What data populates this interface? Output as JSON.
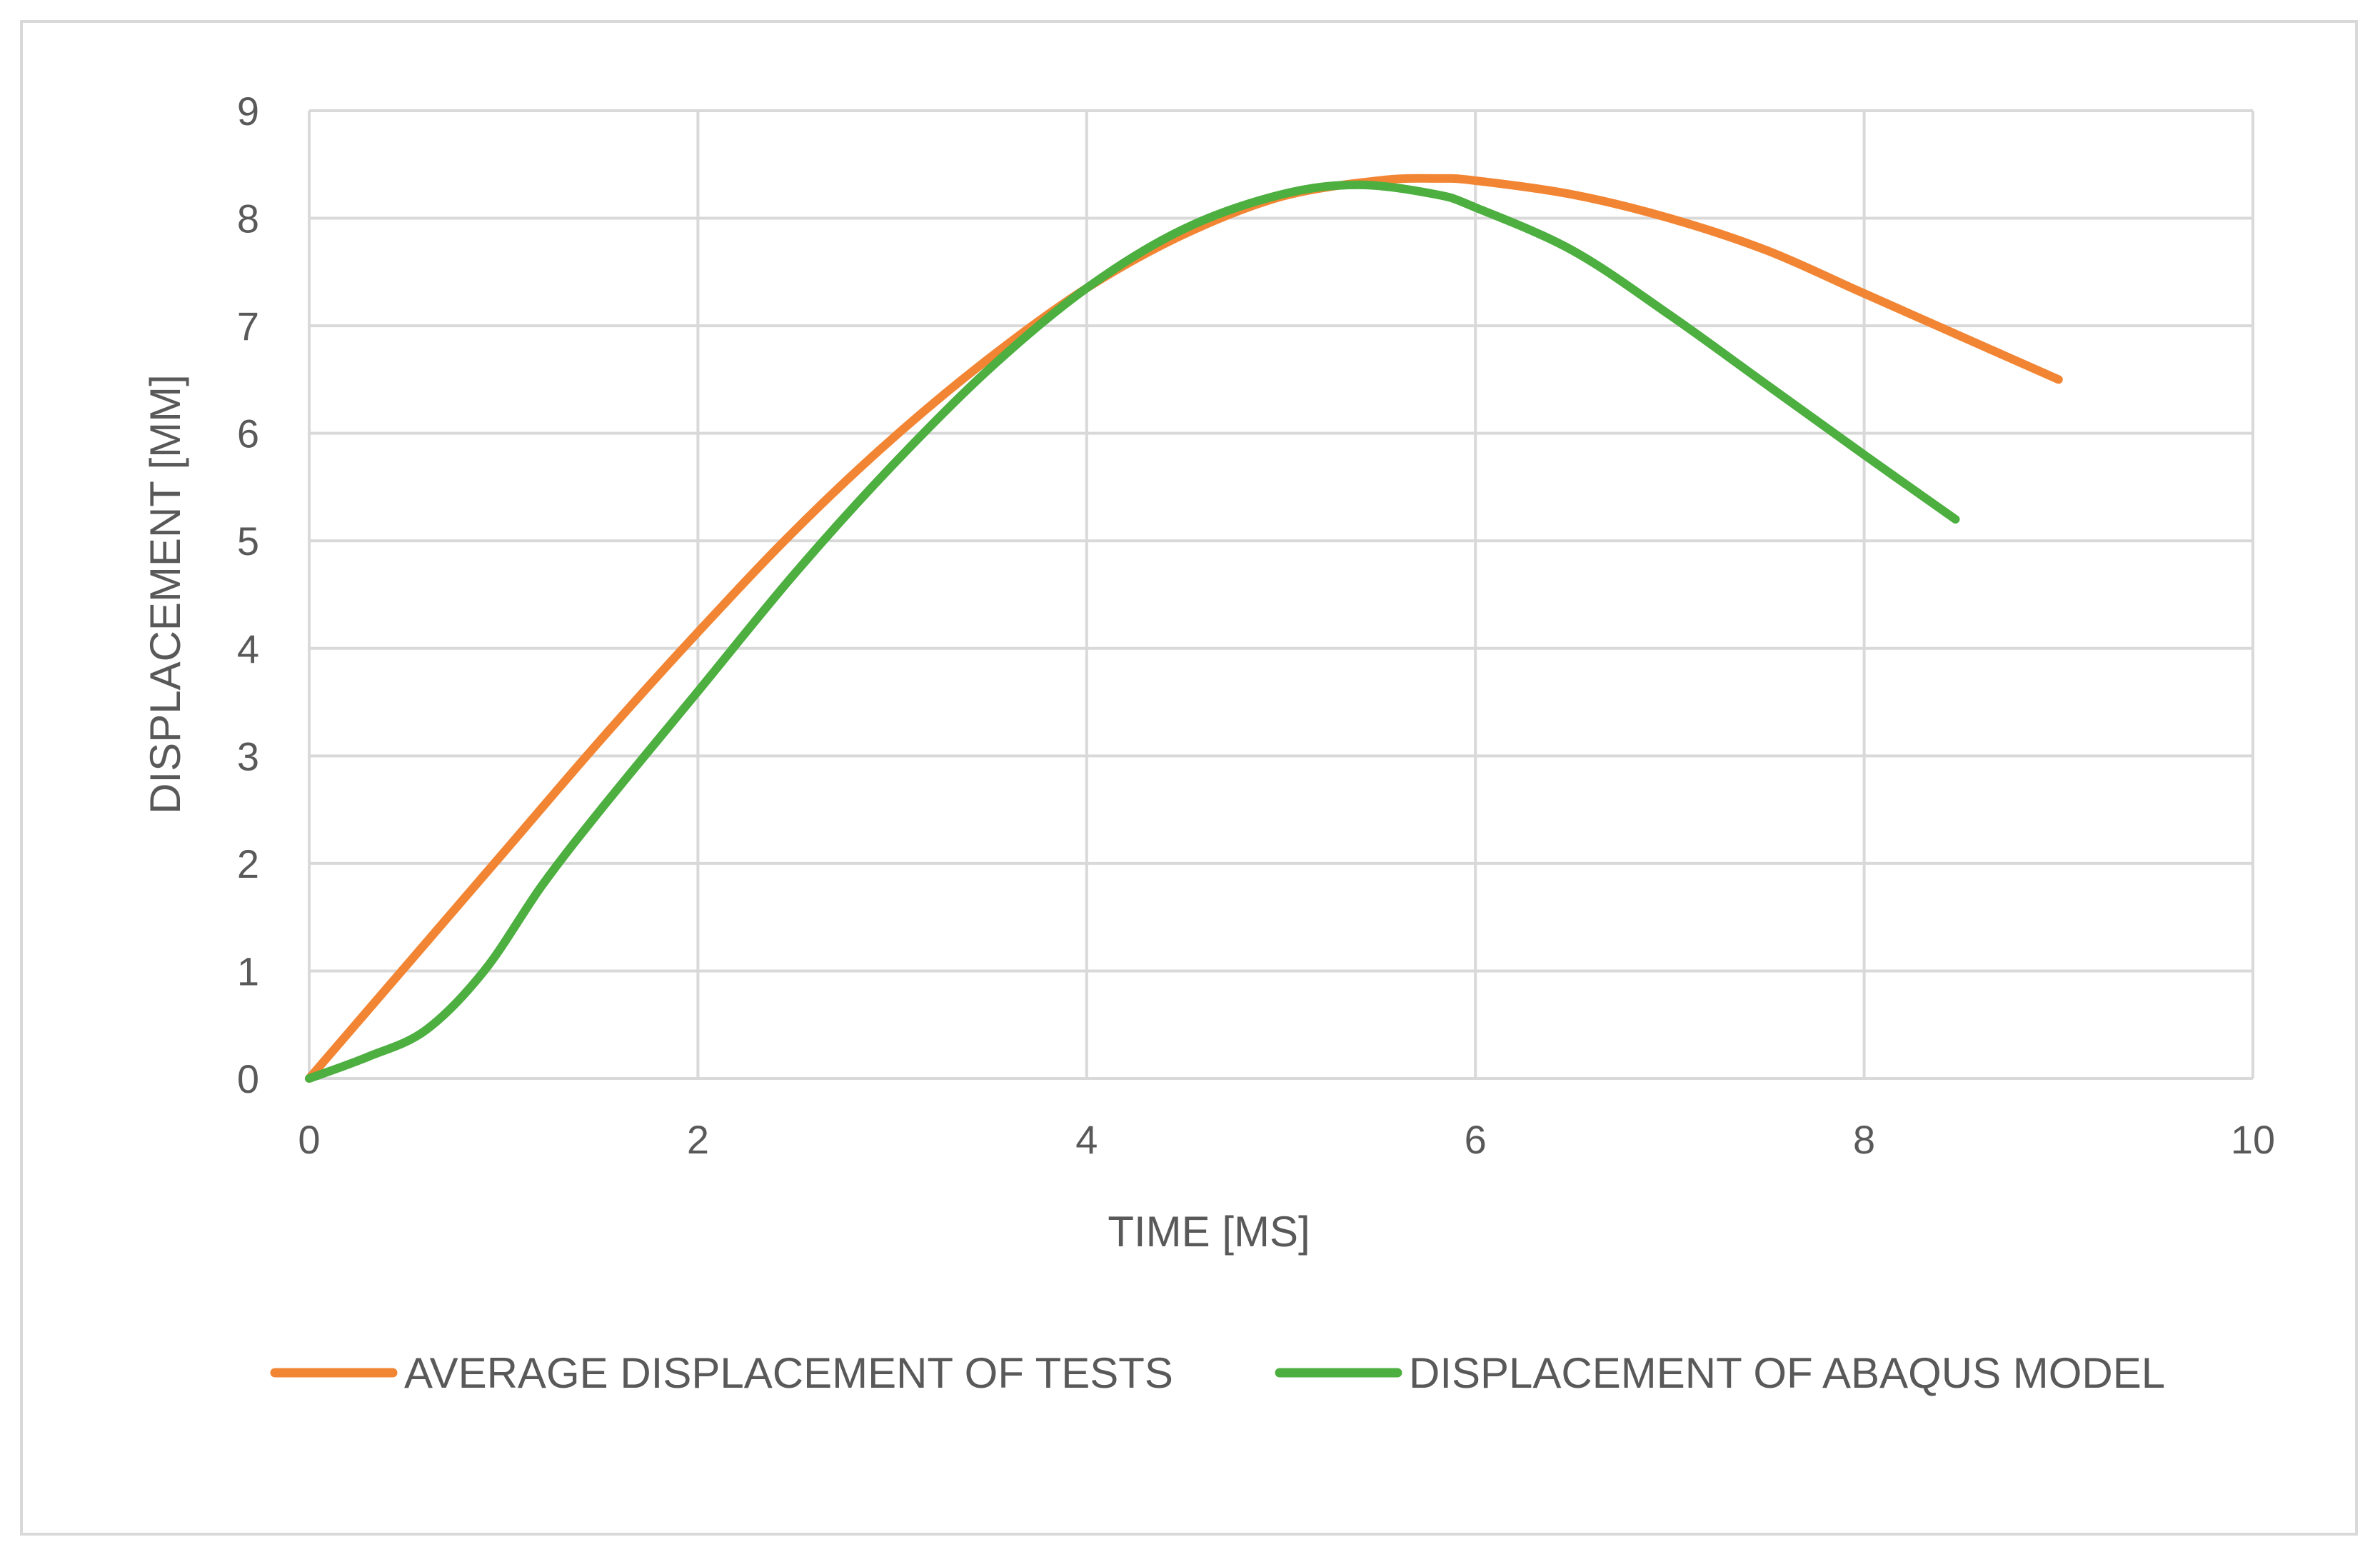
{
  "chart_data": {
    "type": "line",
    "title": "",
    "xlabel": "TIME [MS]",
    "ylabel": "DISPLACEMENT [MM]",
    "xlim": [
      0,
      10
    ],
    "ylim": [
      0,
      9
    ],
    "xticks": [
      0,
      2,
      4,
      6,
      8,
      10
    ],
    "yticks": [
      0,
      1,
      2,
      3,
      4,
      5,
      6,
      7,
      8,
      9
    ],
    "grid": true,
    "legend_position": "bottom",
    "series": [
      {
        "name": "AVERAGE DISPLACEMENT OF TESTS",
        "color": "#f28533",
        "x": [
          0,
          0.5,
          1.0,
          1.5,
          2.0,
          2.5,
          3.0,
          3.5,
          4.0,
          4.5,
          5.0,
          5.5,
          5.8,
          6.0,
          6.5,
          7.0,
          7.5,
          8.0,
          8.5,
          9.0
        ],
        "y": [
          0,
          1.05,
          2.1,
          3.15,
          4.15,
          5.1,
          5.95,
          6.7,
          7.35,
          7.85,
          8.2,
          8.35,
          8.37,
          8.35,
          8.22,
          8.0,
          7.7,
          7.3,
          6.9,
          6.5
        ]
      },
      {
        "name": "DISPLACEMENT OF ABAQUS MODEL",
        "color": "#4caf3f",
        "x": [
          0,
          0.3,
          0.6,
          0.9,
          1.2,
          1.5,
          2.0,
          2.5,
          3.0,
          3.5,
          4.0,
          4.5,
          5.0,
          5.4,
          5.8,
          6.0,
          6.5,
          7.0,
          7.5,
          8.0,
          8.47
        ],
        "y": [
          0,
          0.2,
          0.45,
          1.0,
          1.8,
          2.5,
          3.6,
          4.7,
          5.7,
          6.6,
          7.35,
          7.9,
          8.22,
          8.31,
          8.22,
          8.1,
          7.7,
          7.1,
          6.45,
          5.8,
          5.2
        ]
      }
    ]
  }
}
